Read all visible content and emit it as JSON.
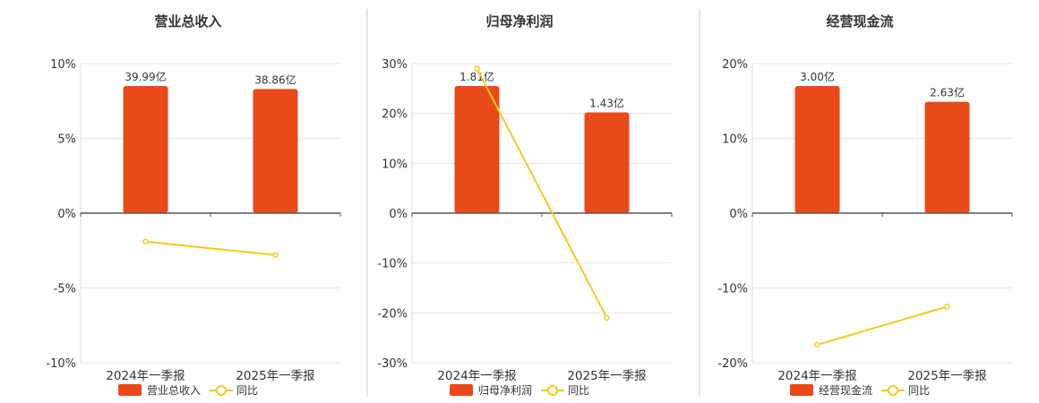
{
  "colors": {
    "bar": "#e84a1a",
    "line": "#f0cc1a",
    "grid": "#e6e6e6",
    "axis": "#555555",
    "divider": "#cccccc"
  },
  "chart_data": [
    {
      "type": "bar",
      "title": "营业总收入",
      "categories": [
        "2024年一季报",
        "2025年一季报"
      ],
      "ylim": [
        -10,
        10
      ],
      "yticks": [
        10,
        5,
        0,
        -5,
        -10
      ],
      "y_tick_labels": [
        "10%",
        "5%",
        "0%",
        "-5%",
        "-10%"
      ],
      "series": [
        {
          "name": "营业总收入",
          "type": "bar",
          "values": [
            8.5,
            8.3
          ],
          "labels": [
            "39.99亿",
            "38.86亿"
          ]
        },
        {
          "name": "同比",
          "type": "line",
          "values": [
            -1.9,
            -2.8
          ]
        }
      ],
      "grid": true,
      "legend": "bottom"
    },
    {
      "type": "bar",
      "title": "归母净利润",
      "categories": [
        "2024年一季报",
        "2025年一季报"
      ],
      "ylim": [
        -30,
        30
      ],
      "yticks": [
        30,
        20,
        10,
        0,
        -10,
        -20,
        -30
      ],
      "y_tick_labels": [
        "30%",
        "20%",
        "10%",
        "0%",
        "-10%",
        "-20%",
        "-30%"
      ],
      "series": [
        {
          "name": "归母净利润",
          "type": "bar",
          "values": [
            25.5,
            20.2
          ],
          "labels": [
            "1.81亿",
            "1.43亿"
          ]
        },
        {
          "name": "同比",
          "type": "line",
          "values": [
            29.0,
            -21.0
          ]
        }
      ],
      "grid": true,
      "legend": "bottom"
    },
    {
      "type": "bar",
      "title": "经营现金流",
      "categories": [
        "2024年一季报",
        "2025年一季报"
      ],
      "ylim": [
        -20,
        20
      ],
      "yticks": [
        20,
        10,
        0,
        -10,
        -20
      ],
      "y_tick_labels": [
        "20%",
        "10%",
        "0%",
        "-10%",
        "-20%"
      ],
      "series": [
        {
          "name": "经营现金流",
          "type": "bar",
          "values": [
            17.0,
            14.9
          ],
          "labels": [
            "3.00亿",
            "2.63亿"
          ]
        },
        {
          "name": "同比",
          "type": "line",
          "values": [
            -17.6,
            -12.5
          ]
        }
      ],
      "grid": true,
      "legend": "bottom"
    }
  ]
}
